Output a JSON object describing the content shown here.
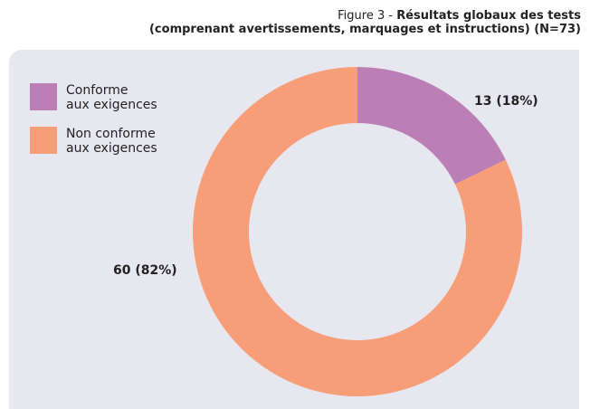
{
  "chart_data": {
    "type": "donut",
    "figure_label": "Figure 3 -",
    "title": "Résultats globaux des tests",
    "subtitle": "(comprenant avertissements, marquages et instructions) (N=73)",
    "series": [
      {
        "name": "Conforme\naux exigences",
        "color": "#bb7fb5"
      },
      {
        "name": "Non conforme\naux exigences",
        "color": "#f79e78"
      }
    ],
    "values": [
      13,
      60
    ],
    "value_labels": [
      "13 (18%)",
      "60 (82%)"
    ],
    "legend": "top-left"
  }
}
